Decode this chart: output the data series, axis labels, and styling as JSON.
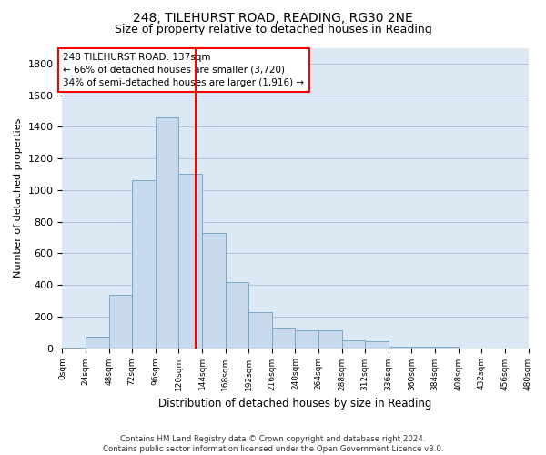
{
  "title_line1": "248, TILEHURST ROAD, READING, RG30 2NE",
  "title_line2": "Size of property relative to detached houses in Reading",
  "xlabel": "Distribution of detached houses by size in Reading",
  "ylabel": "Number of detached properties",
  "footnote": "Contains HM Land Registry data © Crown copyright and database right 2024.\nContains public sector information licensed under the Open Government Licence v3.0.",
  "annotation_line1": "248 TILEHURST ROAD: 137sqm",
  "annotation_line2": "← 66% of detached houses are smaller (3,720)",
  "annotation_line3": "34% of semi-detached houses are larger (1,916) →",
  "bar_color": "#c8d8ed",
  "bar_edge_color": "#7aaac8",
  "vline_color": "red",
  "vline_x": 137,
  "bin_width": 24,
  "bins_left": [
    0,
    24,
    48,
    72,
    96,
    120,
    144,
    168,
    192,
    216,
    240,
    264,
    288,
    312,
    336,
    360,
    384,
    408,
    432,
    456
  ],
  "bar_heights": [
    5,
    70,
    340,
    1060,
    1460,
    1100,
    730,
    420,
    230,
    130,
    110,
    110,
    50,
    45,
    10,
    10,
    10,
    0,
    0,
    0
  ],
  "tick_labels": [
    "0sqm",
    "24sqm",
    "48sqm",
    "72sqm",
    "96sqm",
    "120sqm",
    "144sqm",
    "168sqm",
    "192sqm",
    "216sqm",
    "240sqm",
    "264sqm",
    "288sqm",
    "312sqm",
    "336sqm",
    "360sqm",
    "384sqm",
    "408sqm",
    "432sqm",
    "456sqm",
    "480sqm"
  ],
  "ylim": [
    0,
    1900
  ],
  "yticks": [
    0,
    200,
    400,
    600,
    800,
    1000,
    1200,
    1400,
    1600,
    1800
  ],
  "background_color": "#ffffff",
  "plot_bg_color": "#dce9f5",
  "grid_color": "#b0c4d8",
  "title_fontsize": 10,
  "subtitle_fontsize": 9,
  "annot_fontsize": 7.5
}
